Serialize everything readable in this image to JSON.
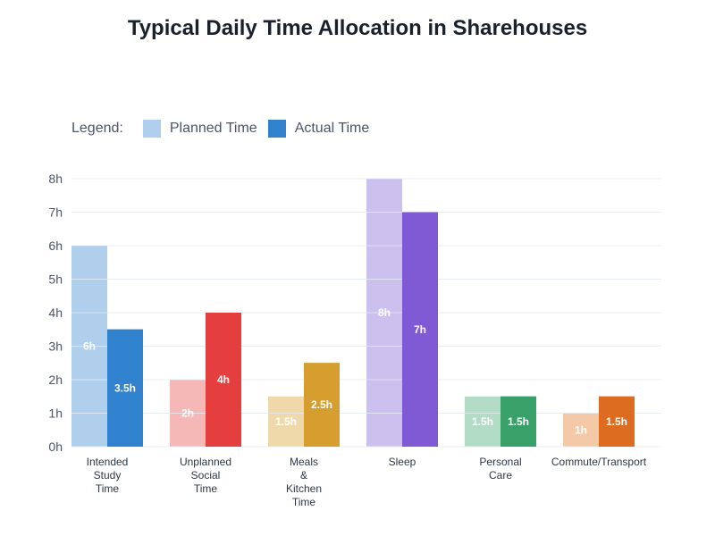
{
  "chart_data": {
    "type": "bar",
    "title": "Typical Daily Time Allocation in Sharehouses",
    "legend_label": "Legend:",
    "legend_placement": "top-left",
    "categories": [
      [
        "Intended",
        "Study",
        "Time"
      ],
      [
        "Unplanned",
        "Social",
        "Time"
      ],
      [
        "Meals",
        "&",
        "Kitchen",
        "Time"
      ],
      [
        "Sleep"
      ],
      [
        "Personal",
        "Care"
      ],
      [
        "Commute/Transport"
      ]
    ],
    "series": [
      {
        "name": "Planned Time",
        "values": [
          6,
          2,
          1.5,
          8,
          1.5,
          1
        ],
        "labels": [
          "6h",
          "2h",
          "1.5h",
          "8h",
          "1.5h",
          "1h"
        ]
      },
      {
        "name": "Actual Time",
        "values": [
          3.5,
          4,
          2.5,
          7,
          1.5,
          1.5
        ],
        "labels": [
          "3.5h",
          "4h",
          "2.5h",
          "7h",
          "1.5h",
          "1.5h"
        ]
      }
    ],
    "colors_actual": [
      "#3182ce",
      "#e53e3e",
      "#d69e2e",
      "#805ad5",
      "#38a169",
      "#dd6b20"
    ],
    "colors_planned": [
      "#b0cfec",
      "#f6b7b7",
      "#efd9ab",
      "#ccc0ef",
      "#b3dcc7",
      "#f4c9a8"
    ],
    "legend_colors": [
      "#b0cfec",
      "#3182ce"
    ],
    "ylim": [
      0,
      8
    ],
    "yticks": [
      "0h",
      "1h",
      "2h",
      "3h",
      "4h",
      "5h",
      "6h",
      "7h",
      "8h"
    ],
    "grid": true
  }
}
